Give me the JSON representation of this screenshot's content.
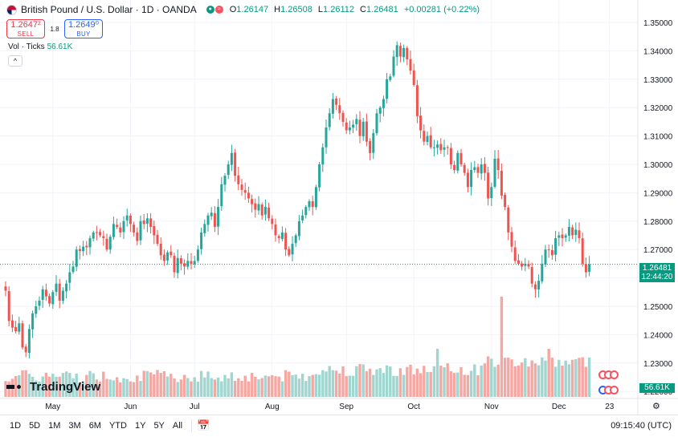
{
  "header": {
    "symbol": "British Pound / U.S. Dollar · 1D · OANDA",
    "ohlc": [
      {
        "k": "O",
        "v": "1.26147"
      },
      {
        "k": "H",
        "v": "1.26508"
      },
      {
        "k": "L",
        "v": "1.26112"
      },
      {
        "k": "C",
        "v": "1.26481"
      }
    ],
    "change": "+0.00281 (+0.22%)"
  },
  "trade": {
    "sell_price": "1.2647²",
    "sell_label": "SELL",
    "spread": "1.8",
    "buy_price": "1.2649⁰",
    "buy_label": "BUY"
  },
  "volume": {
    "label": "Vol · Ticks",
    "value": "56.61K"
  },
  "price_tag": {
    "price": "1.26481",
    "countdown": "12:44:20"
  },
  "logo_text": "TradingView",
  "bottom": {
    "ranges": [
      "1D",
      "5D",
      "1M",
      "3M",
      "6M",
      "YTD",
      "1Y",
      "5Y",
      "All"
    ],
    "clock": "09:15:40 (UTC)"
  },
  "colors": {
    "up": "#26a69a",
    "down": "#ef5350",
    "vol_up": "#9fd6d0",
    "vol_down": "#f4a7a3",
    "accent": "#089981"
  },
  "chart_data": {
    "type": "candlestick",
    "title": "British Pound / U.S. Dollar · 1D · OANDA",
    "y_ticks": [
      "1.35000",
      "1.34000",
      "1.33000",
      "1.32000",
      "1.31000",
      "1.30000",
      "1.29000",
      "1.28000",
      "1.27000",
      "1.26000",
      "1.25000",
      "1.24000",
      "1.23000",
      "1.22000"
    ],
    "ylim": [
      1.2195,
      1.354
    ],
    "x_ticks": [
      {
        "label": "May",
        "i": 14
      },
      {
        "label": "Jun",
        "i": 37
      },
      {
        "label": "Jul",
        "i": 56
      },
      {
        "label": "Aug",
        "i": 79
      },
      {
        "label": "Sep",
        "i": 101
      },
      {
        "label": "Oct",
        "i": 121
      },
      {
        "label": "Nov",
        "i": 144
      },
      {
        "label": "Dec",
        "i": 164
      },
      {
        "label": "23",
        "i": 179
      }
    ],
    "last_price": 1.26481,
    "closes": [
      1.2555,
      1.2448,
      1.2425,
      1.2412,
      1.244,
      1.2355,
      1.2338,
      1.242,
      1.2475,
      1.25,
      1.252,
      1.256,
      1.2535,
      1.251,
      1.255,
      1.258,
      1.252,
      1.2555,
      1.258,
      1.262,
      1.264,
      1.27,
      1.2695,
      1.271,
      1.2708,
      1.274,
      1.276,
      1.276,
      1.275,
      1.274,
      1.27,
      1.2745,
      1.279,
      1.278,
      1.276,
      1.28,
      1.282,
      1.279,
      1.276,
      1.273,
      1.28,
      1.279,
      1.281,
      1.278,
      1.275,
      1.272,
      1.268,
      1.266,
      1.269,
      1.268,
      1.262,
      1.267,
      1.265,
      1.264,
      1.266,
      1.265,
      1.266,
      1.27,
      1.276,
      1.279,
      1.282,
      1.283,
      1.278,
      1.285,
      1.293,
      1.296,
      1.3,
      1.304,
      1.296,
      1.293,
      1.291,
      1.29,
      1.288,
      1.286,
      1.284,
      1.286,
      1.282,
      1.285,
      1.281,
      1.279,
      1.275,
      1.274,
      1.276,
      1.27,
      1.268,
      1.272,
      1.275,
      1.28,
      1.282,
      1.285,
      1.287,
      1.285,
      1.292,
      1.3,
      1.306,
      1.313,
      1.318,
      1.323,
      1.321,
      1.318,
      1.315,
      1.312,
      1.313,
      1.314,
      1.316,
      1.31,
      1.315,
      1.308,
      1.304,
      1.311,
      1.318,
      1.32,
      1.323,
      1.33,
      1.331,
      1.338,
      1.342,
      1.338,
      1.341,
      1.337,
      1.333,
      1.328,
      1.317,
      1.312,
      1.308,
      1.31,
      1.306,
      1.306,
      1.307,
      1.305,
      1.306,
      1.306,
      1.3,
      1.298,
      1.304,
      1.3,
      1.297,
      1.292,
      1.298,
      1.299,
      1.297,
      1.3,
      1.297,
      1.288,
      1.292,
      1.302,
      1.298,
      1.289,
      1.285,
      1.276,
      1.271,
      1.266,
      1.265,
      1.264,
      1.265,
      1.264,
      1.258,
      1.256,
      1.259,
      1.265,
      1.27,
      1.27,
      1.268,
      1.274,
      1.275,
      1.274,
      1.275,
      1.278,
      1.275,
      1.277,
      1.274,
      1.265,
      1.262,
      1.2648
    ],
    "volume_label_value": "56.61K"
  }
}
